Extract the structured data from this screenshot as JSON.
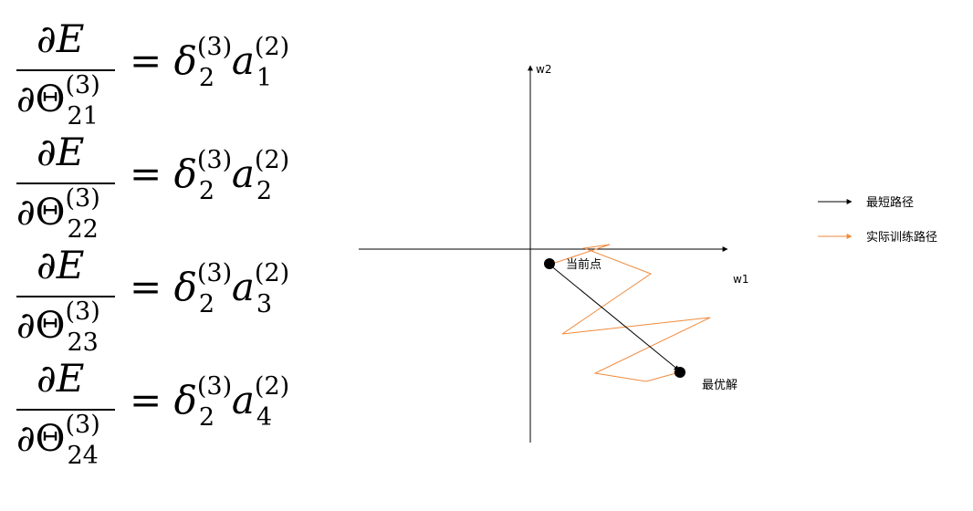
{
  "equations": [
    {
      "num": "∂E",
      "den_sym": "∂Θ",
      "den_sub": "21",
      "den_sup": "(3)",
      "delta": "δ",
      "delta_sub": "2",
      "delta_sup": "(3)",
      "a": "a",
      "a_sub": "1",
      "a_sup": "(2)"
    },
    {
      "num": "∂E",
      "den_sym": "∂Θ",
      "den_sub": "22",
      "den_sup": "(3)",
      "delta": "δ",
      "delta_sub": "2",
      "delta_sup": "(3)",
      "a": "a",
      "a_sub": "2",
      "a_sup": "(2)"
    },
    {
      "num": "∂E",
      "den_sym": "∂Θ",
      "den_sub": "23",
      "den_sup": "(3)",
      "delta": "δ",
      "delta_sub": "2",
      "delta_sup": "(3)",
      "a": "a",
      "a_sub": "3",
      "a_sup": "(2)"
    },
    {
      "num": "∂E",
      "den_sym": "∂Θ",
      "den_sub": "24",
      "den_sup": "(3)",
      "delta": "δ",
      "delta_sub": "2",
      "delta_sup": "(3)",
      "a": "a",
      "a_sub": "4",
      "a_sup": "(2)"
    }
  ],
  "equals": "=",
  "diagram": {
    "axis_x_label": "w1",
    "axis_y_label": "w2",
    "current_point_label": "当前点",
    "optimum_label": "最优解",
    "legend": [
      {
        "label": "最短路径",
        "color": "#000000"
      },
      {
        "label": "实际训练路径",
        "color": "#f08a3c"
      }
    ],
    "colors": {
      "axis": "#000000",
      "shortest": "#000000",
      "actual": "#f08a3c",
      "point": "#000000"
    }
  }
}
